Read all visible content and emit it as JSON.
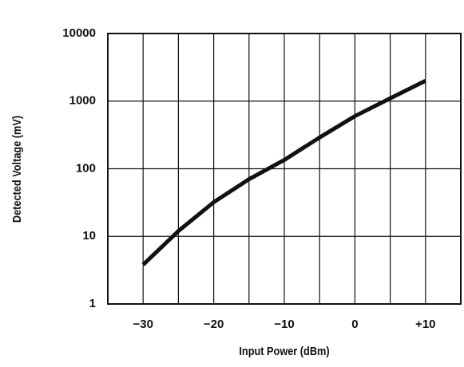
{
  "chart_data": {
    "type": "line",
    "x_label": "Input Power (dBm)",
    "y_label": "Detected Voltage (mV)",
    "x": [
      -30,
      -25,
      -20,
      -15,
      -10,
      -5,
      0,
      5,
      10
    ],
    "series": [
      {
        "color": "#111111",
        "values": [
          3.8,
          12,
          32,
          70,
          135,
          290,
          600,
          1100,
          2000
        ]
      }
    ],
    "xlim": [
      -35,
      15
    ],
    "xticks": [
      {
        "value": -30,
        "label": "−30"
      },
      {
        "value": -20,
        "label": "−20"
      },
      {
        "value": -10,
        "label": "−10"
      },
      0,
      {
        "value": 10,
        "label": "+10"
      }
    ],
    "x_minor_ticks": [
      -25,
      -15,
      -5,
      5
    ],
    "ylim": [
      1,
      10000
    ],
    "yticks": [
      1,
      10,
      100,
      1000,
      10000
    ],
    "y_scale": "log",
    "grid": true
  }
}
